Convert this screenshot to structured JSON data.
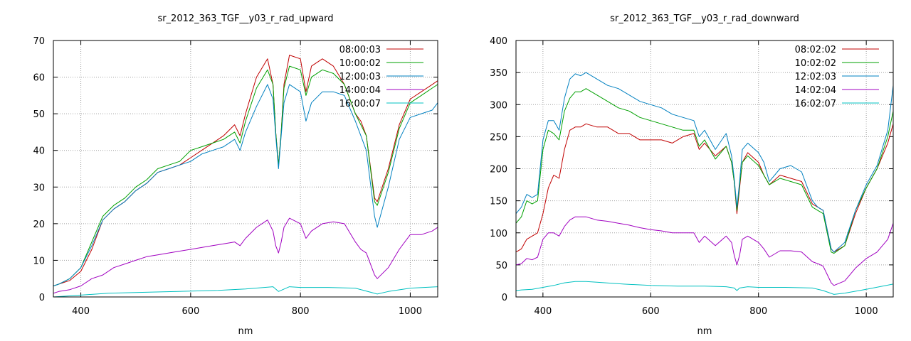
{
  "chart_data": [
    {
      "type": "line",
      "title": "sr_2012_363_TGF__y03_r_rad_upward",
      "xlabel": "nm",
      "ylabel": "",
      "xlim": [
        350,
        1050
      ],
      "ylim": [
        0,
        70
      ],
      "xticks": [
        400,
        600,
        800,
        1000
      ],
      "yticks": [
        0,
        10,
        20,
        30,
        40,
        50,
        60,
        70
      ],
      "grid": true,
      "legend_position": "top-right",
      "series": [
        {
          "name": "08:00:03",
          "color": "#c00000",
          "x": [
            350,
            360,
            380,
            400,
            420,
            440,
            460,
            480,
            500,
            520,
            540,
            560,
            580,
            600,
            620,
            640,
            660,
            680,
            690,
            700,
            720,
            740,
            750,
            755,
            760,
            765,
            770,
            780,
            800,
            810,
            820,
            840,
            860,
            880,
            900,
            910,
            920,
            935,
            940,
            960,
            980,
            1000,
            1020,
            1040,
            1050
          ],
          "y": [
            3,
            3.5,
            4.5,
            7,
            13,
            21,
            24,
            26,
            29,
            31,
            34,
            35,
            36,
            38,
            40,
            42,
            44,
            47,
            44,
            50,
            60,
            65,
            58,
            45,
            36,
            45,
            58,
            66,
            65,
            56,
            63,
            65,
            63,
            58,
            50,
            48,
            44,
            27,
            26,
            35,
            47,
            54,
            56,
            58,
            59
          ]
        },
        {
          "name": "10:00:02",
          "color": "#00a000",
          "x": [
            350,
            360,
            380,
            400,
            420,
            440,
            460,
            480,
            500,
            520,
            540,
            560,
            580,
            600,
            620,
            640,
            660,
            680,
            690,
            700,
            720,
            740,
            750,
            755,
            760,
            765,
            770,
            780,
            800,
            810,
            820,
            840,
            860,
            880,
            900,
            910,
            920,
            935,
            940,
            960,
            980,
            1000,
            1020,
            1040,
            1050
          ],
          "y": [
            3,
            3.5,
            5,
            8,
            15,
            22,
            25,
            27,
            30,
            32,
            35,
            36,
            37,
            40,
            41,
            42,
            43,
            45,
            42,
            48,
            57,
            62,
            58,
            45,
            36,
            45,
            57,
            63,
            62,
            55,
            60,
            62,
            61,
            58,
            50,
            47,
            44,
            26,
            25,
            34,
            46,
            53,
            55,
            57,
            58
          ]
        },
        {
          "name": "12:00:03",
          "color": "#0080c0",
          "x": [
            350,
            360,
            380,
            400,
            420,
            440,
            460,
            480,
            500,
            520,
            540,
            560,
            580,
            600,
            620,
            640,
            660,
            680,
            690,
            700,
            720,
            740,
            750,
            755,
            760,
            765,
            770,
            780,
            800,
            810,
            820,
            840,
            860,
            880,
            900,
            910,
            920,
            935,
            940,
            960,
            980,
            1000,
            1020,
            1040,
            1050
          ],
          "y": [
            3,
            3.5,
            5,
            8,
            14,
            21,
            24,
            26,
            29,
            31,
            34,
            35,
            36,
            37,
            39,
            40,
            41,
            43,
            40,
            45,
            52,
            58,
            54,
            44,
            35,
            44,
            53,
            58,
            56,
            48,
            53,
            56,
            56,
            55,
            48,
            44,
            40,
            22,
            19,
            30,
            43,
            49,
            50,
            51,
            53
          ]
        },
        {
          "name": "14:00:04",
          "color": "#a000c0",
          "x": [
            350,
            360,
            380,
            400,
            420,
            440,
            460,
            480,
            500,
            520,
            540,
            560,
            580,
            600,
            620,
            640,
            660,
            680,
            690,
            700,
            720,
            740,
            750,
            755,
            760,
            765,
            770,
            780,
            800,
            810,
            820,
            840,
            860,
            880,
            900,
            910,
            920,
            935,
            940,
            960,
            980,
            1000,
            1020,
            1040,
            1050
          ],
          "y": [
            1,
            1.5,
            2,
            3,
            5,
            6,
            8,
            9,
            10,
            11,
            11.5,
            12,
            12.5,
            13,
            13.5,
            14,
            14.5,
            15,
            14,
            16,
            19,
            21,
            18,
            14,
            12,
            15,
            19,
            21.5,
            20,
            16,
            18,
            20,
            20.5,
            20,
            15,
            13,
            12,
            6,
            5,
            8,
            13,
            17,
            17,
            18,
            19
          ]
        },
        {
          "name": "16:00:07",
          "color": "#00c0c0",
          "x": [
            350,
            400,
            450,
            500,
            550,
            600,
            650,
            700,
            750,
            760,
            780,
            800,
            850,
            900,
            940,
            960,
            1000,
            1050
          ],
          "y": [
            0,
            0.5,
            1,
            1.2,
            1.4,
            1.6,
            1.8,
            2.2,
            2.8,
            1.5,
            2.8,
            2.6,
            2.6,
            2.4,
            0.8,
            1.5,
            2.4,
            2.8
          ]
        }
      ]
    },
    {
      "type": "line",
      "title": "sr_2012_363_TGF__y03_r_rad_downward",
      "xlabel": "nm",
      "ylabel": "",
      "xlim": [
        350,
        1050
      ],
      "ylim": [
        0,
        400
      ],
      "xticks": [
        400,
        600,
        800,
        1000
      ],
      "yticks": [
        0,
        50,
        100,
        150,
        200,
        250,
        300,
        350,
        400
      ],
      "grid": true,
      "legend_position": "top-right",
      "series": [
        {
          "name": "08:02:02",
          "color": "#c00000",
          "x": [
            350,
            360,
            370,
            380,
            390,
            400,
            410,
            420,
            430,
            440,
            450,
            460,
            470,
            480,
            500,
            520,
            540,
            560,
            580,
            600,
            620,
            640,
            660,
            680,
            690,
            700,
            720,
            740,
            750,
            755,
            760,
            765,
            770,
            780,
            800,
            810,
            820,
            840,
            860,
            880,
            900,
            910,
            920,
            935,
            940,
            960,
            980,
            1000,
            1020,
            1040,
            1050
          ],
          "y": [
            70,
            75,
            90,
            95,
            100,
            130,
            170,
            190,
            185,
            230,
            260,
            265,
            265,
            270,
            265,
            265,
            255,
            255,
            245,
            245,
            245,
            240,
            250,
            255,
            230,
            240,
            220,
            235,
            210,
            180,
            130,
            170,
            210,
            225,
            210,
            190,
            175,
            190,
            185,
            180,
            145,
            140,
            135,
            75,
            70,
            80,
            130,
            170,
            200,
            240,
            270
          ]
        },
        {
          "name": "10:02:02",
          "color": "#00a000",
          "x": [
            350,
            360,
            370,
            380,
            390,
            400,
            410,
            420,
            430,
            440,
            450,
            460,
            470,
            480,
            500,
            520,
            540,
            560,
            580,
            600,
            620,
            640,
            660,
            680,
            690,
            700,
            720,
            740,
            750,
            755,
            760,
            765,
            770,
            780,
            800,
            810,
            820,
            840,
            860,
            880,
            900,
            910,
            920,
            935,
            940,
            960,
            980,
            1000,
            1020,
            1040,
            1050
          ],
          "y": [
            115,
            125,
            150,
            145,
            150,
            230,
            260,
            255,
            245,
            290,
            310,
            320,
            320,
            325,
            315,
            305,
            295,
            290,
            280,
            275,
            270,
            265,
            260,
            260,
            235,
            245,
            215,
            235,
            210,
            180,
            135,
            175,
            210,
            220,
            205,
            190,
            175,
            185,
            180,
            175,
            140,
            135,
            130,
            70,
            68,
            80,
            135,
            170,
            200,
            250,
            290
          ]
        },
        {
          "name": "12:02:03",
          "color": "#0080c0",
          "x": [
            350,
            360,
            370,
            380,
            390,
            400,
            410,
            420,
            430,
            440,
            450,
            460,
            470,
            480,
            500,
            520,
            540,
            560,
            580,
            600,
            620,
            640,
            660,
            680,
            690,
            700,
            720,
            740,
            750,
            755,
            760,
            765,
            770,
            780,
            800,
            810,
            820,
            840,
            860,
            880,
            900,
            910,
            920,
            935,
            940,
            960,
            980,
            1000,
            1020,
            1040,
            1050
          ],
          "y": [
            130,
            140,
            160,
            155,
            160,
            245,
            275,
            275,
            260,
            310,
            340,
            348,
            345,
            350,
            340,
            330,
            325,
            315,
            305,
            300,
            295,
            285,
            280,
            275,
            250,
            260,
            230,
            255,
            220,
            185,
            140,
            180,
            230,
            240,
            225,
            210,
            180,
            200,
            205,
            195,
            150,
            140,
            135,
            75,
            70,
            85,
            135,
            175,
            205,
            260,
            330
          ]
        },
        {
          "name": "14:02:04",
          "color": "#a000c0",
          "x": [
            350,
            360,
            370,
            380,
            390,
            400,
            410,
            420,
            430,
            440,
            450,
            460,
            470,
            480,
            500,
            520,
            540,
            560,
            580,
            600,
            620,
            640,
            660,
            680,
            690,
            700,
            720,
            740,
            750,
            755,
            760,
            765,
            770,
            780,
            800,
            810,
            820,
            840,
            860,
            880,
            900,
            910,
            920,
            935,
            940,
            960,
            980,
            1000,
            1020,
            1040,
            1050
          ],
          "y": [
            50,
            52,
            60,
            58,
            62,
            90,
            100,
            100,
            95,
            110,
            120,
            125,
            125,
            125,
            120,
            118,
            115,
            112,
            108,
            105,
            103,
            100,
            100,
            100,
            85,
            95,
            80,
            95,
            85,
            65,
            50,
            65,
            90,
            95,
            85,
            75,
            62,
            72,
            72,
            70,
            55,
            52,
            48,
            22,
            18,
            25,
            45,
            60,
            70,
            90,
            115
          ]
        },
        {
          "name": "16:02:07",
          "color": "#00c0c0",
          "x": [
            350,
            360,
            380,
            400,
            420,
            440,
            460,
            480,
            500,
            550,
            600,
            650,
            700,
            740,
            755,
            760,
            765,
            780,
            800,
            850,
            900,
            920,
            940,
            960,
            1000,
            1050
          ],
          "y": [
            10,
            11,
            12,
            15,
            18,
            22,
            24,
            24,
            23,
            20,
            18,
            17,
            17,
            16,
            14,
            10,
            14,
            16,
            15,
            15,
            14,
            10,
            4,
            6,
            12,
            20
          ]
        }
      ]
    }
  ]
}
